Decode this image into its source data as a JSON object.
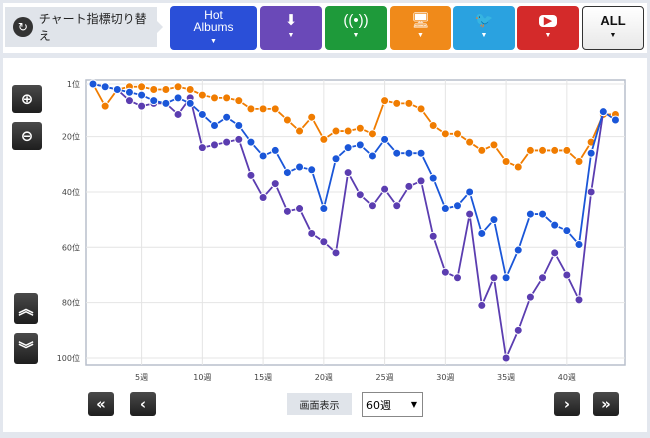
{
  "toolbar": {
    "label": "チャート指標切り替え",
    "buttons": [
      {
        "name": "hot-albums",
        "label1": "Hot",
        "label2": "Albums",
        "color": "#2a4fd8",
        "icon": "hot-albums"
      },
      {
        "name": "sales",
        "color": "#6a49b8",
        "icon": "download-cd-icon"
      },
      {
        "name": "radio",
        "color": "#1e9a3a",
        "icon": "radio-tower-icon"
      },
      {
        "name": "pc",
        "color": "#f08a1a",
        "icon": "pc-cd-icon"
      },
      {
        "name": "twitter",
        "color": "#2aa2e0",
        "icon": "twitter-icon"
      },
      {
        "name": "youtube",
        "color": "#d42a2a",
        "icon": "youtube-icon"
      },
      {
        "name": "all",
        "label1": "ALL",
        "color": "#ffffff",
        "icon": "all"
      }
    ]
  },
  "controls": {
    "display_label": "画面表示",
    "weeks_value": "60週"
  },
  "chart_data": {
    "type": "line",
    "ylim": [
      1,
      100
    ],
    "y_inverted": true,
    "yticks": [
      {
        "v": 1,
        "label": "1位"
      },
      {
        "v": 20,
        "label": "20位"
      },
      {
        "v": 40,
        "label": "40位"
      },
      {
        "v": 60,
        "label": "60位"
      },
      {
        "v": 80,
        "label": "80位"
      },
      {
        "v": 100,
        "label": "100位"
      }
    ],
    "xticks": [
      {
        "v": 5,
        "label": "5週"
      },
      {
        "v": 10,
        "label": "10週"
      },
      {
        "v": 15,
        "label": "15週"
      },
      {
        "v": 20,
        "label": "20週"
      },
      {
        "v": 25,
        "label": "25週"
      },
      {
        "v": 30,
        "label": "30週"
      },
      {
        "v": 35,
        "label": "35週"
      },
      {
        "v": 40,
        "label": "40週"
      }
    ],
    "xlim": [
      1,
      44
    ],
    "series": [
      {
        "name": "orange",
        "color": "#f07c00",
        "values": [
          1,
          9,
          3,
          2,
          2,
          3,
          3,
          2,
          3,
          5,
          6,
          6,
          7,
          10,
          10,
          10,
          14,
          18,
          13,
          21,
          18,
          18,
          17,
          19,
          7,
          8,
          8,
          10,
          16,
          19,
          19,
          22,
          25,
          23,
          29,
          31,
          25,
          25,
          25,
          25,
          29,
          22,
          12,
          12
        ]
      },
      {
        "name": "purple",
        "color": "#5b3db0",
        "values": [
          1,
          2,
          3,
          7,
          9,
          8,
          8,
          12,
          6,
          24,
          23,
          22,
          21,
          34,
          42,
          37,
          47,
          46,
          55,
          58,
          62,
          33,
          41,
          45,
          39,
          45,
          38,
          36,
          56,
          69,
          71,
          48,
          81,
          71,
          100,
          90,
          78,
          71,
          62,
          70,
          79,
          40,
          11
        ]
      },
      {
        "name": "blue",
        "color": "#1a56d8",
        "values": [
          1,
          2,
          3,
          4,
          5,
          7,
          8,
          6,
          8,
          12,
          16,
          13,
          16,
          22,
          27,
          25,
          33,
          31,
          32,
          46,
          28,
          24,
          23,
          27,
          21,
          26,
          26,
          26,
          35,
          46,
          45,
          40,
          55,
          50,
          71,
          61,
          48,
          48,
          52,
          54,
          59,
          26,
          11,
          14
        ]
      }
    ]
  }
}
